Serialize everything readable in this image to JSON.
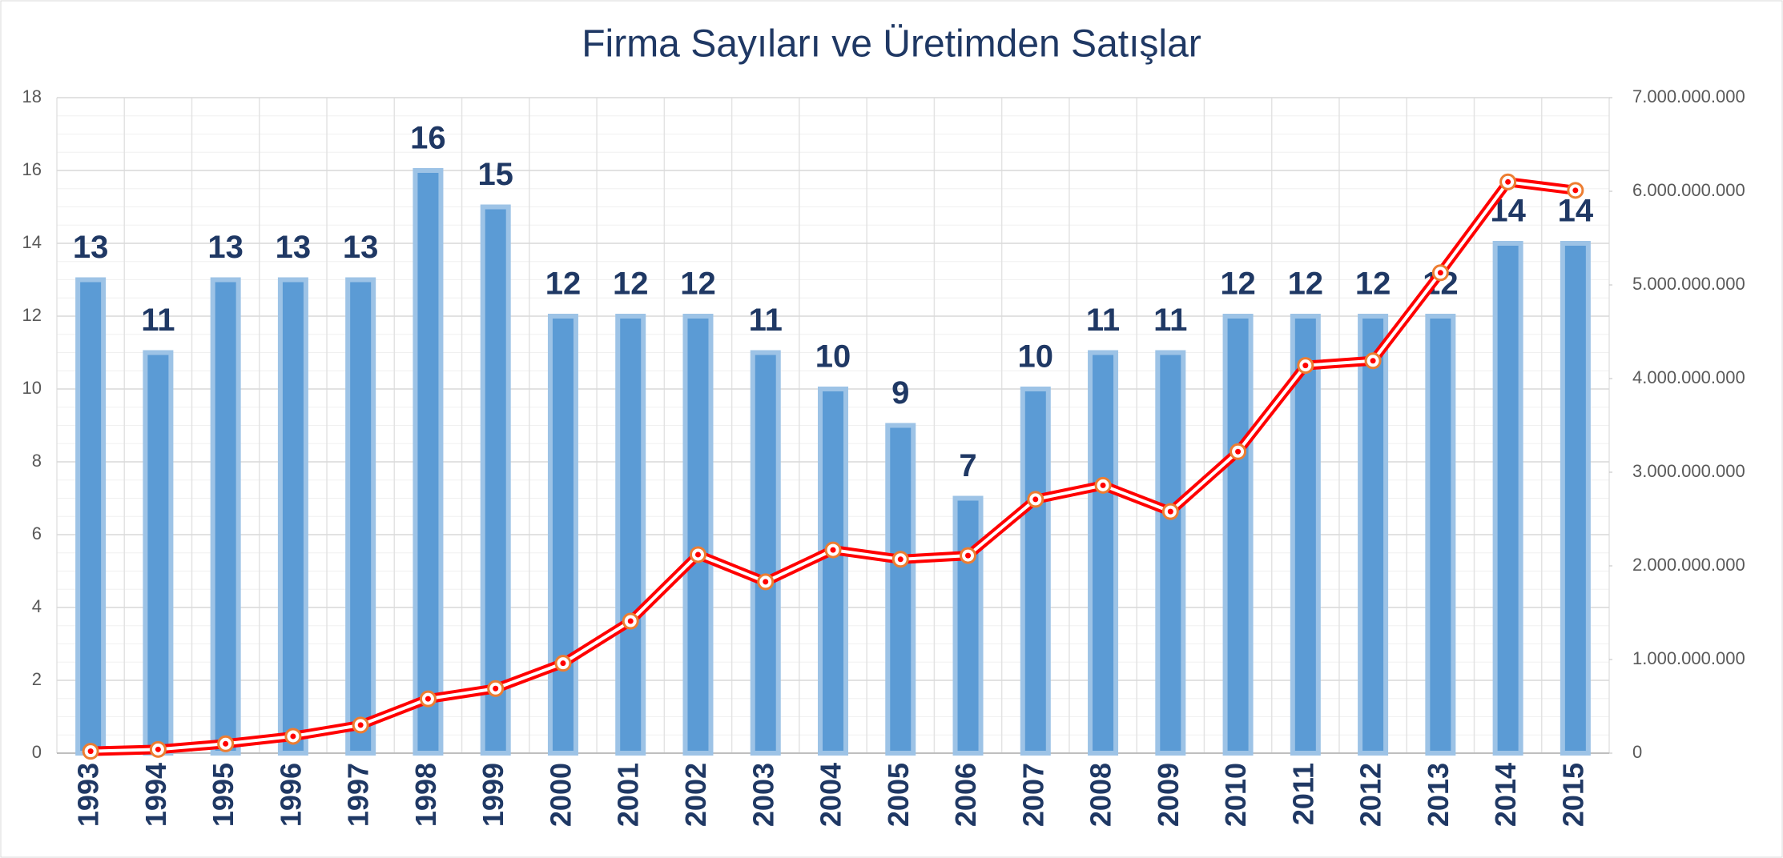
{
  "chart_data": {
    "type": "bar-line",
    "title": "Firma Sayıları ve Üretimden Satışlar",
    "categories": [
      "1993",
      "1994",
      "1995",
      "1996",
      "1997",
      "1998",
      "1999",
      "2000",
      "2001",
      "2002",
      "2003",
      "2004",
      "2005",
      "2006",
      "2007",
      "2008",
      "2009",
      "2010",
      "2011",
      "2012",
      "2013",
      "2014",
      "2015"
    ],
    "series": [
      {
        "type": "bar",
        "color": "#5b9bd5",
        "edge_color": "#9dc3e6",
        "data_labels": true,
        "values": [
          13,
          11,
          13,
          13,
          13,
          16,
          15,
          12,
          12,
          12,
          11,
          10,
          9,
          7,
          10,
          11,
          11,
          12,
          12,
          12,
          12,
          14,
          14
        ]
      },
      {
        "type": "line",
        "axis": "y2",
        "color": "#ff0000",
        "marker_color": "#ed7d31",
        "values": [
          20000000,
          40000000,
          100000000,
          180000000,
          300000000,
          580000000,
          690000000,
          960000000,
          1410000000,
          2120000000,
          1830000000,
          2170000000,
          2070000000,
          2110000000,
          2710000000,
          2860000000,
          2580000000,
          3220000000,
          4140000000,
          4190000000,
          5130000000,
          6100000000,
          6010000000
        ]
      }
    ],
    "ylim": [
      0,
      18
    ],
    "yticks": [
      0,
      2,
      4,
      6,
      8,
      10,
      12,
      14,
      16,
      18
    ],
    "y2lim": [
      0,
      7000000000
    ],
    "y2ticks": [
      0,
      {
        "value": 1000000000,
        "label": "1.000.000.000"
      },
      {
        "value": 2000000000,
        "label": "2.000.000.000"
      },
      {
        "value": 3000000000,
        "label": "3.000.000.000"
      },
      {
        "value": 4000000000,
        "label": "4.000.000.000"
      },
      {
        "value": 5000000000,
        "label": "5.000.000.000"
      },
      {
        "value": 6000000000,
        "label": "6.000.000.000"
      },
      {
        "value": 7000000000,
        "label": "7.000.000.000"
      }
    ],
    "grid": true
  }
}
